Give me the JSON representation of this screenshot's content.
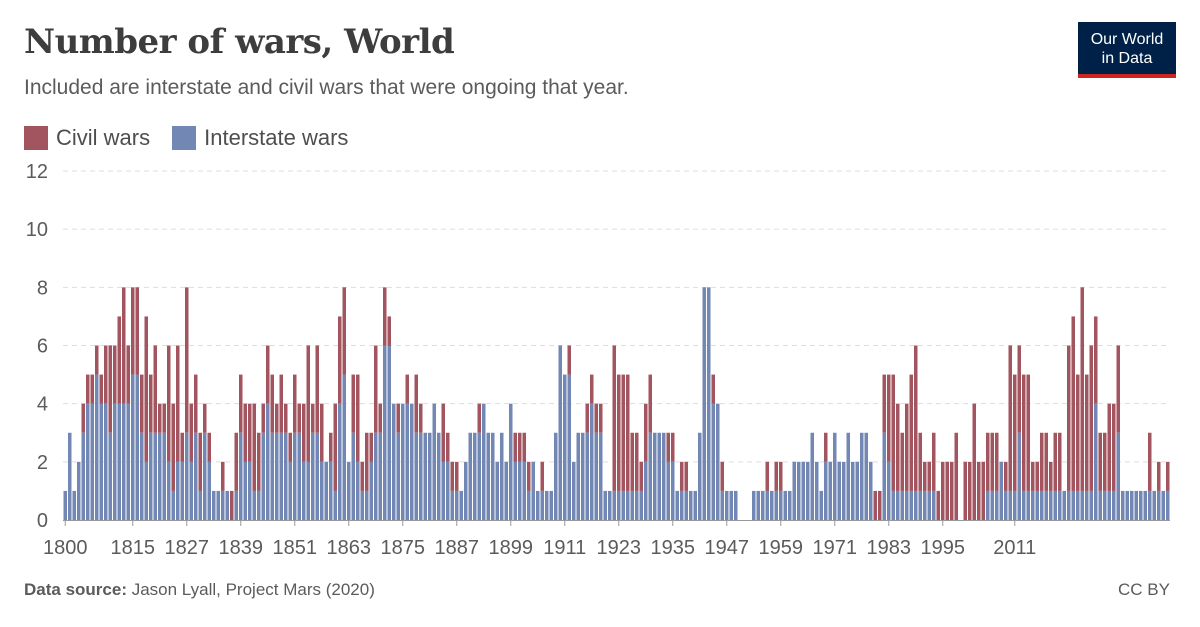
{
  "title": "Number of wars, World",
  "subtitle": "Included are interstate and civil wars that were ongoing that year.",
  "logo": {
    "line1": "Our World",
    "line2": "in Data"
  },
  "footer": {
    "source_label": "Data source:",
    "source_text": "Jason Lyall, Project Mars (2020)",
    "license": "CC BY"
  },
  "colors": {
    "civil": "#a2555f",
    "interstate": "#7287b3",
    "grid": "#dddddd"
  },
  "chart_data": {
    "type": "bar",
    "stacked": true,
    "ylim": [
      0,
      12
    ],
    "yticks": [
      0,
      2,
      4,
      6,
      8,
      10,
      12
    ],
    "xticks": [
      1800,
      1815,
      1827,
      1839,
      1851,
      1863,
      1875,
      1887,
      1899,
      1911,
      1923,
      1935,
      1947,
      1959,
      1971,
      1983,
      1995,
      2011
    ],
    "x_start": 1800,
    "x_end": 2011,
    "legend_position": "top-left",
    "series": [
      {
        "name": "Civil wars",
        "color": "#a2555f",
        "values": [
          0,
          0,
          0,
          0,
          1,
          1,
          1,
          1,
          1,
          2,
          3,
          2,
          3,
          4,
          2,
          3,
          3,
          2,
          5,
          2,
          3,
          1,
          1,
          4,
          3,
          4,
          1,
          5,
          2,
          2,
          2,
          1,
          1,
          0,
          0,
          1,
          0,
          1,
          2,
          2,
          2,
          2,
          3,
          2,
          1,
          2,
          2,
          1,
          2,
          1,
          1,
          2,
          1,
          2,
          4,
          1,
          3,
          2,
          0,
          1,
          3,
          3,
          3,
          0,
          2,
          3,
          1,
          2,
          1,
          3,
          1,
          2,
          1,
          0,
          1,
          0,
          1,
          0,
          2,
          1,
          0,
          0,
          0,
          0,
          2,
          1,
          1,
          1,
          0,
          0,
          0,
          0,
          1,
          0,
          0,
          0,
          0,
          0,
          0,
          0,
          1,
          1,
          1,
          1,
          0,
          0,
          1,
          0,
          0,
          0,
          0,
          0,
          1,
          0,
          0,
          0,
          1,
          1,
          1,
          1,
          0,
          0,
          5,
          4,
          4,
          4,
          2,
          2,
          1,
          2,
          2,
          0,
          0,
          0,
          1,
          1,
          0,
          1,
          1,
          0,
          0,
          0,
          0,
          0,
          1,
          0,
          1,
          0,
          0,
          0,
          0,
          0,
          0,
          0,
          0,
          0,
          1,
          0,
          1,
          1,
          0,
          0,
          0,
          0,
          0,
          0,
          0,
          0,
          0,
          1,
          0,
          0,
          0,
          0,
          0,
          0,
          0,
          0,
          0,
          0,
          1,
          1,
          2,
          3,
          4,
          3,
          2,
          3,
          4,
          5,
          2,
          1,
          1,
          2,
          1,
          2,
          2,
          2,
          3,
          0,
          2,
          2,
          4,
          2,
          2,
          2,
          2,
          2,
          0,
          1,
          5,
          4,
          3,
          4,
          4,
          1,
          1,
          2,
          2,
          1,
          2,
          2,
          0,
          5,
          6,
          4,
          7,
          4,
          5,
          3,
          2,
          2,
          3,
          3,
          3,
          0,
          0,
          0,
          0,
          0,
          0,
          2,
          0,
          1,
          0,
          1
        ]
      },
      {
        "name": "Interstate wars",
        "color": "#7287b3",
        "values": [
          1,
          3,
          1,
          2,
          3,
          4,
          4,
          5,
          4,
          4,
          3,
          4,
          4,
          4,
          4,
          5,
          5,
          3,
          2,
          3,
          3,
          3,
          3,
          2,
          1,
          2,
          2,
          3,
          2,
          3,
          1,
          3,
          2,
          1,
          1,
          1,
          1,
          0,
          1,
          3,
          2,
          2,
          1,
          1,
          3,
          4,
          3,
          3,
          3,
          3,
          2,
          3,
          3,
          2,
          2,
          3,
          3,
          2,
          2,
          2,
          1,
          4,
          5,
          2,
          3,
          2,
          1,
          1,
          2,
          3,
          3,
          6,
          6,
          4,
          3,
          4,
          4,
          4,
          3,
          3,
          3,
          3,
          4,
          3,
          2,
          2,
          1,
          1,
          1,
          2,
          3,
          3,
          3,
          4,
          3,
          3,
          2,
          3,
          2,
          4,
          2,
          2,
          2,
          1,
          2,
          1,
          1,
          1,
          1,
          3,
          6,
          5,
          5,
          2,
          3,
          3,
          3,
          4,
          3,
          3,
          1,
          1,
          1,
          1,
          1,
          1,
          1,
          1,
          1,
          2,
          3,
          3,
          3,
          3,
          2,
          2,
          1,
          1,
          1,
          1,
          1,
          3,
          8,
          8,
          4,
          4,
          1,
          1,
          1,
          1,
          0,
          0,
          0,
          1,
          1,
          1,
          1,
          1,
          1,
          1,
          1,
          1,
          2,
          2,
          2,
          2,
          3,
          2,
          1,
          2,
          2,
          3,
          2,
          2,
          3,
          2,
          2,
          3,
          3,
          2,
          0,
          0,
          3,
          2,
          1,
          1,
          1,
          1,
          1,
          1,
          1,
          1,
          1,
          1,
          0,
          0,
          0,
          0,
          0,
          0,
          0,
          0,
          0,
          0,
          0,
          1,
          1,
          1,
          2,
          1,
          1,
          1,
          3,
          1,
          1,
          1,
          1,
          1,
          1,
          1,
          1,
          1,
          1,
          1,
          1,
          1,
          1,
          1,
          1,
          4,
          1,
          1,
          1,
          1,
          3,
          1,
          1,
          1,
          1,
          1,
          1,
          1,
          1,
          1,
          1,
          1,
          1,
          1,
          1,
          1,
          1,
          2,
          1,
          1,
          1,
          1,
          1,
          0,
          0,
          0,
          0,
          1,
          0,
          0,
          0,
          0,
          0
        ]
      }
    ]
  }
}
